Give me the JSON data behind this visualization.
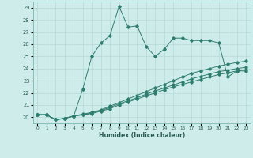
{
  "xlabel": "Humidex (Indice chaleur)",
  "background_color": "#ceecea",
  "grid_color": "#b8d8d5",
  "line_color": "#2e7d6e",
  "xlim": [
    -0.5,
    23.5
  ],
  "ylim": [
    19.5,
    29.5
  ],
  "yticks": [
    20,
    21,
    22,
    23,
    24,
    25,
    26,
    27,
    28,
    29
  ],
  "xtick_labels": [
    "0",
    "1",
    "2",
    "3",
    "4",
    "5",
    "6",
    "7",
    "8",
    "9",
    "10",
    "11",
    "12",
    "13",
    "14",
    "15",
    "16",
    "17",
    "18",
    "19",
    "20",
    "21",
    "22",
    "23"
  ],
  "series": [
    {
      "x": [
        0,
        1,
        2,
        3,
        4,
        5,
        6,
        7,
        8,
        9,
        10,
        11,
        12,
        13,
        14,
        15,
        16,
        17,
        18,
        19,
        20,
        21,
        22,
        23
      ],
      "y": [
        20.2,
        20.2,
        19.8,
        19.9,
        20.1,
        22.3,
        25.0,
        26.1,
        26.7,
        29.1,
        27.4,
        27.5,
        25.8,
        25.0,
        25.6,
        26.5,
        26.5,
        26.3,
        26.3,
        26.3,
        26.1,
        23.3,
        23.8,
        23.8
      ]
    },
    {
      "x": [
        0,
        1,
        2,
        3,
        4,
        5,
        6,
        7,
        8,
        9,
        10,
        11,
        12,
        13,
        14,
        15,
        16,
        17,
        18,
        19,
        20,
        21,
        22,
        23
      ],
      "y": [
        20.2,
        20.2,
        19.8,
        19.9,
        20.1,
        20.25,
        20.4,
        20.6,
        20.9,
        21.2,
        21.5,
        21.8,
        22.1,
        22.4,
        22.7,
        23.0,
        23.3,
        23.6,
        23.8,
        24.0,
        24.2,
        24.35,
        24.5,
        24.6
      ]
    },
    {
      "x": [
        0,
        1,
        2,
        3,
        4,
        5,
        6,
        7,
        8,
        9,
        10,
        11,
        12,
        13,
        14,
        15,
        16,
        17,
        18,
        19,
        20,
        21,
        22,
        23
      ],
      "y": [
        20.2,
        20.2,
        19.8,
        19.9,
        20.1,
        20.2,
        20.35,
        20.55,
        20.8,
        21.1,
        21.35,
        21.6,
        21.9,
        22.15,
        22.4,
        22.65,
        22.9,
        23.15,
        23.35,
        23.55,
        23.75,
        23.85,
        24.0,
        24.1
      ]
    },
    {
      "x": [
        0,
        1,
        2,
        3,
        4,
        5,
        6,
        7,
        8,
        9,
        10,
        11,
        12,
        13,
        14,
        15,
        16,
        17,
        18,
        19,
        20,
        21,
        22,
        23
      ],
      "y": [
        20.2,
        20.2,
        19.8,
        19.9,
        20.1,
        20.2,
        20.3,
        20.5,
        20.7,
        21.0,
        21.25,
        21.5,
        21.75,
        22.0,
        22.25,
        22.5,
        22.7,
        22.9,
        23.1,
        23.3,
        23.5,
        23.65,
        23.8,
        23.9
      ]
    }
  ]
}
